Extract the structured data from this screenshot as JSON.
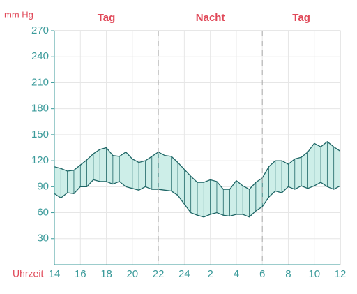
{
  "chart_data": {
    "type": "range-band",
    "ylabel": "mm Hg",
    "xlabel": "Uhrzeit",
    "ylim": [
      0,
      270
    ],
    "yticks": [
      30,
      60,
      90,
      120,
      150,
      180,
      210,
      240,
      270
    ],
    "xlim": [
      14,
      36
    ],
    "xticks": [
      14,
      16,
      18,
      20,
      22,
      24,
      {
        "value": 26,
        "label": "2"
      },
      {
        "value": 28,
        "label": "4"
      },
      {
        "value": 30,
        "label": "6"
      },
      {
        "value": 32,
        "label": "8"
      },
      {
        "value": 34,
        "label": "10"
      },
      {
        "value": 36,
        "label": "12"
      }
    ],
    "grid": true,
    "periods": [
      {
        "label": "Tag",
        "start": 14,
        "end": 22
      },
      {
        "label": "Nacht",
        "start": 22,
        "end": 30
      },
      {
        "label": "Tag",
        "start": 30,
        "end": 36
      }
    ],
    "x": [
      14,
      14.5,
      15,
      15.5,
      16,
      16.5,
      17,
      17.5,
      18,
      18.5,
      19,
      19.5,
      20,
      20.5,
      21,
      21.5,
      22,
      22.5,
      23,
      23.5,
      24,
      24.5,
      25,
      25.5,
      26,
      26.5,
      27,
      27.5,
      28,
      28.5,
      29,
      29.5,
      30,
      30.5,
      31,
      31.5,
      32,
      32.5,
      33,
      33.5,
      34,
      34.5,
      35,
      35.5,
      36
    ],
    "series": [
      {
        "color": "#1d6565",
        "values": [
          113,
          111,
          108,
          109,
          115,
          121,
          128,
          133,
          135,
          126,
          125,
          130,
          122,
          118,
          120,
          125,
          130,
          126,
          125,
          118,
          110,
          102,
          95,
          95,
          98,
          96,
          87,
          87,
          97,
          91,
          87,
          95,
          100,
          113,
          120,
          120,
          116,
          122,
          124,
          130,
          140,
          136,
          142,
          136,
          131
        ]
      },
      {
        "color": "#1d6565",
        "values": [
          82,
          77,
          83,
          82,
          90,
          90,
          98,
          96,
          96,
          93,
          96,
          90,
          88,
          86,
          90,
          87,
          87,
          86,
          85,
          80,
          70,
          60,
          57,
          55,
          58,
          60,
          57,
          56,
          58,
          58,
          55,
          62,
          67,
          78,
          85,
          83,
          90,
          87,
          91,
          88,
          91,
          95,
          90,
          87,
          91
        ]
      }
    ],
    "fill": "#cdeee8"
  }
}
